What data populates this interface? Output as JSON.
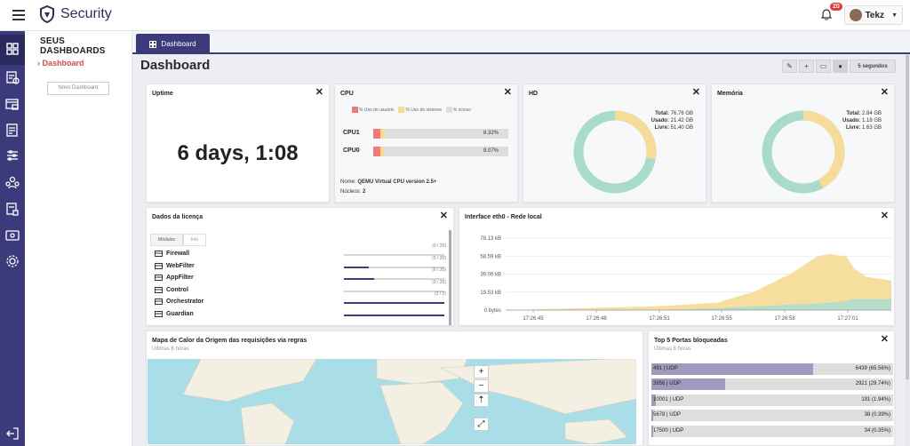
{
  "app": {
    "name": "Security"
  },
  "header": {
    "notifications": "20",
    "user": "Tekz"
  },
  "sidebar": {
    "title": "SEUS DASHBOARDS",
    "active": "Dashboard",
    "new_button": "Novo Dashboard"
  },
  "tabs": [
    {
      "label": "Dashboard"
    }
  ],
  "page": {
    "title": "Dashboard"
  },
  "toolbar": {
    "refresh": "5 segundos"
  },
  "uptime": {
    "title": "Uptime",
    "value": "6 days, 1:08"
  },
  "cpu": {
    "title": "CPU",
    "legend": [
      "% Uso do usuário",
      "% Uso do sistema",
      "% ocioso"
    ],
    "rows": [
      {
        "name": "CPU1",
        "value": "8.32%",
        "user": 0.055,
        "system": 0.028
      },
      {
        "name": "CPU0",
        "value": "8.07%",
        "user": 0.053,
        "system": 0.027
      }
    ],
    "name_label": "Nome:",
    "name_value": "QEMU Virtual CPU version 2.5+",
    "cores_label": "Núcleos:",
    "cores_value": "2"
  },
  "hd": {
    "title": "HD",
    "total_label": "Total:",
    "total": "76.76 GB",
    "used_label": "Usado:",
    "used": "21.42 GB",
    "free_label": "Livre:",
    "free": "51.40 GB",
    "used_fraction": 0.279
  },
  "memory": {
    "title": "Memória",
    "total_label": "Total:",
    "total": "2.84 GB",
    "used_label": "Usado:",
    "used": "1.18 GB",
    "free_label": "Livre:",
    "free": "1.63 GB",
    "used_fraction": 0.42
  },
  "license": {
    "title": "Dados da licença",
    "tabs": [
      "Módulos",
      "Info"
    ],
    "modules": [
      {
        "name": "Firewall",
        "count": "(0 / 20)",
        "fill": 0,
        "icon": "firewall-icon"
      },
      {
        "name": "WebFilter",
        "count": "(5 / 20)",
        "fill": 0.25,
        "icon": "webfilter-icon"
      },
      {
        "name": "AppFilter",
        "count": "(6 / 20)",
        "fill": 0.3,
        "icon": "appfilter-icon"
      },
      {
        "name": "Control",
        "count": "(0 / 20)",
        "fill": 0,
        "icon": "control-icon"
      },
      {
        "name": "Orchestrator",
        "count": "(2 / 2)",
        "fill": 1,
        "icon": "orchestrator-icon"
      },
      {
        "name": "Guardian",
        "count": "",
        "fill": 1,
        "icon": "guardian-icon"
      }
    ]
  },
  "network": {
    "title": "Interface eth0 - Rede local"
  },
  "chart_data": {
    "type": "area",
    "title": "Interface eth0 - Rede local",
    "x": [
      "17:26:45",
      "17:26:48",
      "17:26:51",
      "17:26:55",
      "17:26:58",
      "17:27:01"
    ],
    "y_ticks": [
      "78.13 kB",
      "58.59 kB",
      "39.06 kB",
      "19.53 kB",
      "0 bytes"
    ],
    "ylim": [
      0,
      78.13
    ],
    "series": [
      {
        "color": "#f6dc99",
        "x": [
          17.2645,
          17.2648,
          17.2651,
          17.26535,
          17.2655,
          17.26565,
          17.26575,
          17.2658,
          17.26587,
          17.2659,
          17.26595,
          17.26605
        ],
        "values": [
          0,
          2,
          4,
          8,
          20,
          40,
          58,
          61,
          58,
          45,
          36,
          32
        ]
      },
      {
        "color": "#b2dccd",
        "x": [
          17.2645,
          17.2648,
          17.2651,
          17.26535,
          17.2655,
          17.26565,
          17.26575,
          17.2658,
          17.26587,
          17.2659,
          17.26595,
          17.26605
        ],
        "values": [
          0,
          0,
          0,
          2,
          4,
          6,
          7,
          8,
          10,
          12,
          12,
          12
        ]
      }
    ]
  },
  "heatmap": {
    "title": "Mapa de Calor da Origem das requisições via regras",
    "subtitle": "Últimas 6 horas"
  },
  "ports": {
    "title": "Top 5 Portas bloqueadas",
    "subtitle": "Últimas 6 horas",
    "rows": [
      {
        "label": "491 | UDP",
        "value": "6439 (65.56%)",
        "fill": 0.6556
      },
      {
        "label": "3956 | UDP",
        "value": "2921 (29.74%)",
        "fill": 0.2974
      },
      {
        "label": "10001 | UDP",
        "value": "191 (1.94%)",
        "fill": 0.0194
      },
      {
        "label": "5678 | UDP",
        "value": "38 (0.39%)",
        "fill": 0.0039
      },
      {
        "label": "17500 | UDP",
        "value": "34 (0.35%)",
        "fill": 0.0035
      }
    ]
  }
}
